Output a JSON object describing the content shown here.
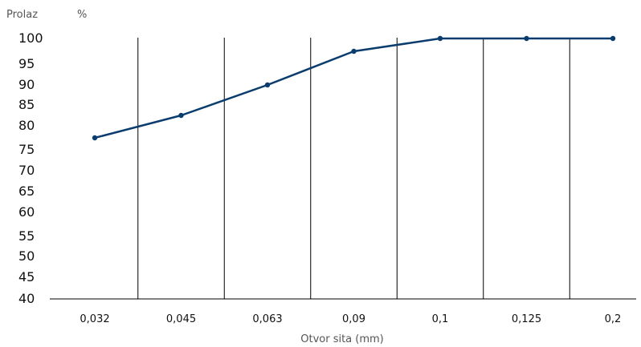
{
  "chart_data": {
    "type": "line",
    "ylabel": "Prolaz",
    "yunit": "%",
    "xlabel": "Otvor sita (mm)",
    "categories": [
      "0,032",
      "0,045",
      "0,063",
      "0,09",
      "0,1",
      "0,125",
      "0,2"
    ],
    "yticks": [
      "100",
      "95",
      "90",
      "85",
      "80",
      "75",
      "70",
      "65",
      "60",
      "55",
      "50",
      "45",
      "40"
    ],
    "series": [
      {
        "values": [
          77.5,
          82.5,
          90,
          97.5,
          100,
          100,
          100
        ]
      }
    ],
    "line_color": "#0b3c6e",
    "grid": "vertical"
  }
}
